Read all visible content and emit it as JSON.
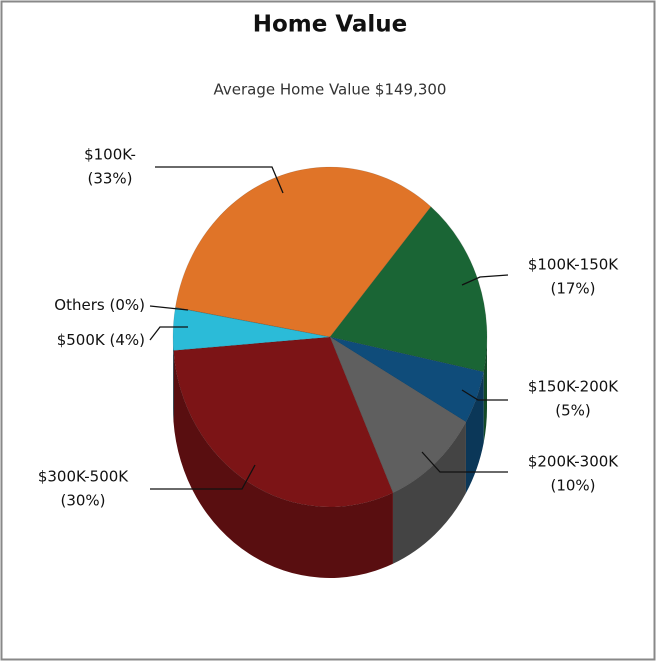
{
  "chart_data": {
    "type": "pie",
    "title": "Home Value",
    "subtitle": "Average Home Value  $149,300",
    "categories": [
      "$100K-",
      "$100K-150K",
      "$150K-200K",
      "$200K-300K",
      "$300K-500K",
      "$500K",
      "Others"
    ],
    "values": [
      33,
      17,
      5,
      10,
      30,
      4,
      0
    ],
    "value_labels": [
      "(33%)",
      "(17%)",
      "(5%)",
      "(10%)",
      "(30%)",
      "(4%)",
      "(0%)"
    ],
    "colors": [
      "#e07428",
      "#1a6535",
      "#0f4c7a",
      "#5f5f5f",
      "#7c1416",
      "#2bbbd8",
      "#999999"
    ]
  }
}
